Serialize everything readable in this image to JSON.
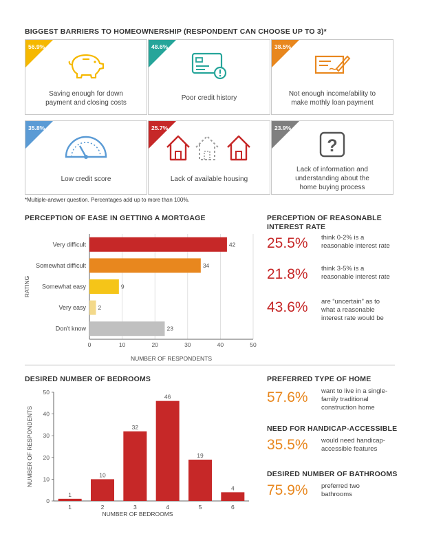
{
  "barriers": {
    "title": "BIGGEST BARRIERS TO HOMEOWNERSHIP (RESPONDENT CAN CHOOSE UP TO 3)*",
    "items": [
      {
        "pct": "56.9%",
        "label": "Saving enough for down payment and closing costs",
        "color": "#f5b800",
        "icon": "piggy-bank-icon"
      },
      {
        "pct": "48.6%",
        "label": "Poor credit history",
        "color": "#26a59a",
        "icon": "credit-card-icon"
      },
      {
        "pct": "38.5%",
        "label": "Not enough income/ability to make mothly loan payment",
        "color": "#e8871e",
        "icon": "check-signing-icon"
      },
      {
        "pct": "35.8%",
        "label": "Low credit score",
        "color": "#5b9bd5",
        "icon": "gauge-icon"
      },
      {
        "pct": "25.7%",
        "label": "Lack of available housing",
        "color": "#c62828",
        "icon": "houses-icon"
      },
      {
        "pct": "23.9%",
        "label": "Lack of information and understanding about the home buying process",
        "color": "#7f7f7f",
        "icon": "question-icon"
      }
    ],
    "footnote": "*Multiple-answer question. Percentages add up to more than 100%."
  },
  "ease": {
    "title": "PERCEPTION OF EASE IN GETTING A MORTGAGE"
  },
  "interest": {
    "title_line1": "PERCEPTION OF REASONABLE",
    "title_line2": "INTEREST RATE",
    "items": [
      {
        "value": "25.5%",
        "text": [
          "think 0-2% is a",
          "reasonable interest rate"
        ]
      },
      {
        "value": "21.8%",
        "text": [
          "think 3-5% is a",
          "reasonable interest rate"
        ]
      },
      {
        "value": "43.6%",
        "text": [
          "are “uncertain” as to",
          "what a reasonable",
          "interest rate would be"
        ]
      }
    ]
  },
  "bedrooms": {
    "title": "DESIRED NUMBER OF BEDROOMS"
  },
  "home_type": {
    "title": "PREFERRED TYPE OF HOME",
    "value": "57.6%",
    "text": [
      "want to live in a single-",
      "family traditional",
      "construction home"
    ]
  },
  "handicap": {
    "title": "NEED FOR HANDICAP-ACCESSIBLE",
    "value": "35.5%",
    "text": [
      "would need handicap-",
      "accessible features"
    ]
  },
  "bathrooms": {
    "title": "DESIRED NUMBER OF BATHROOMS",
    "value": "75.9%",
    "text": [
      "preferred two",
      "bathrooms"
    ]
  },
  "chart_data": [
    {
      "type": "bar",
      "orientation": "horizontal",
      "title": "PERCEPTION OF EASE IN GETTING A MORTGAGE",
      "categories": [
        "Very difficult",
        "Somewhat difficult",
        "Somewhat easy",
        "Very easy",
        "Don't know"
      ],
      "values": [
        42,
        34,
        9,
        2,
        23
      ],
      "colors": [
        "#c62828",
        "#e8871e",
        "#f5c518",
        "#f3d98b",
        "#c0c0c0"
      ],
      "xlabel": "NUMBER OF RESPONDENTS",
      "ylabel": "RATING",
      "xlim": [
        0,
        50
      ],
      "ticks": [
        0,
        10,
        20,
        30,
        40,
        50
      ],
      "grid": true
    },
    {
      "type": "bar",
      "title": "DESIRED NUMBER OF BEDROOMS",
      "categories": [
        "1",
        "2",
        "3",
        "4",
        "5",
        "6"
      ],
      "values": [
        1,
        10,
        32,
        46,
        19,
        4
      ],
      "color": "#c62828",
      "xlabel": "NUMBER OF BEDROOMS",
      "ylabel": "NUMBER OF RESPONDENTS",
      "ylim": [
        0,
        50
      ],
      "ticks": [
        0,
        10,
        20,
        30,
        40,
        50
      ]
    }
  ]
}
